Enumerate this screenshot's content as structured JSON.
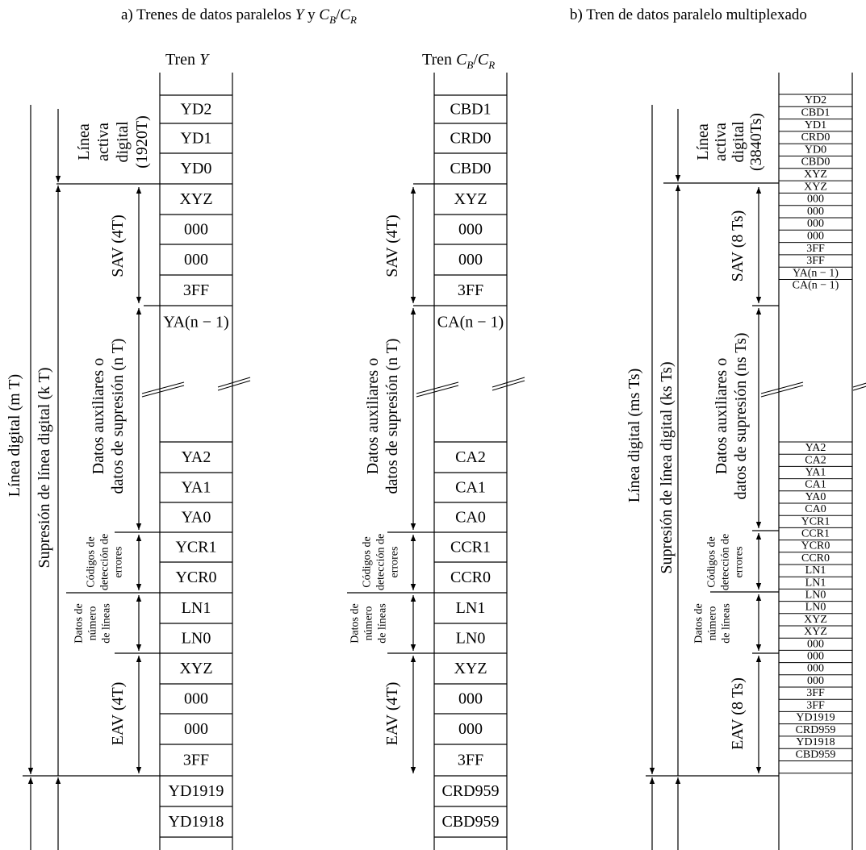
{
  "titles": {
    "a": "a) Trenes de datos paralelos Y y C_B/C_R",
    "b": "b) Tren de datos paralelo multiplexado"
  },
  "headers": {
    "y": "Tren Y",
    "cbcr": "Tren C_B/C_R"
  },
  "columns": {
    "y": [
      "YD2",
      "YD1",
      "YD0",
      "XYZ",
      "000",
      "000",
      "3FF",
      "YA(n − 1)",
      "",
      "YA2",
      "YA1",
      "YA0",
      "YCR1",
      "YCR0",
      "LN1",
      "LN0",
      "XYZ",
      "000",
      "000",
      "3FF",
      "YD1919",
      "YD1918"
    ],
    "cbcr": [
      "CBD1",
      "CRD0",
      "CBD0",
      "XYZ",
      "000",
      "000",
      "3FF",
      "CA(n − 1)",
      "",
      "CA2",
      "CA1",
      "CA0",
      "CCR1",
      "CCR0",
      "LN1",
      "LN0",
      "XYZ",
      "000",
      "000",
      "3FF",
      "CRD959",
      "CBD959"
    ],
    "mux": [
      "YD2",
      "CBD1",
      "YD1",
      "CRD0",
      "YD0",
      "CBD0",
      "XYZ",
      "XYZ",
      "000",
      "000",
      "000",
      "000",
      "3FF",
      "3FF",
      "YA(n − 1)",
      "CA(n − 1)",
      "",
      "YA2",
      "CA2",
      "YA1",
      "CA1",
      "YA0",
      "CA0",
      "YCR1",
      "CCR1",
      "YCR0",
      "CCR0",
      "LN1",
      "LN1",
      "LN0",
      "LN0",
      "XYZ",
      "XYZ",
      "000",
      "000",
      "000",
      "000",
      "3FF",
      "3FF",
      "YD1919",
      "CRD959",
      "YD1918",
      "CBD959"
    ]
  },
  "labels_a": {
    "linea_activa": [
      "Línea",
      "activa",
      "digital",
      "(1920T)"
    ],
    "sav": "SAV (4T)",
    "datos_aux": [
      "Datos auxiliares o",
      "datos de supresión (n T)"
    ],
    "codigos": [
      "Códigos de",
      "detección de",
      "errores"
    ],
    "num_lineas": [
      "Datos de",
      "número",
      "de líneas"
    ],
    "eav": "EAV (4T)",
    "supresion": "Supresión de línea digital (k T)",
    "linea_digital": "Línea digital (m T)"
  },
  "labels_cbcr": {
    "sav": "SAV (4T)",
    "datos_aux": [
      "Datos auxiliares o",
      "datos de supresión (n T)"
    ],
    "codigos": [
      "Códigos de",
      "detección de",
      "errores"
    ],
    "num_lineas": [
      "Datos de",
      "número",
      "de líneas"
    ],
    "eav": "EAV (4T)"
  },
  "labels_b": {
    "linea_activa": [
      "Línea",
      "activa",
      "digital",
      "(3840Ts)"
    ],
    "sav": "SAV (8 Ts)",
    "datos_aux": [
      "Datos auxiliares o",
      "datos de supresión (ns Ts)"
    ],
    "codigos": [
      "Códigos de",
      "detección de",
      "errores"
    ],
    "num_lineas": [
      "Datos de",
      "número",
      "de líneas"
    ],
    "eav": "EAV (8 Ts)",
    "supresion": "Supresión de línea digital (ks Ts)",
    "linea_digital": "Línea digital (ms Ts)"
  }
}
